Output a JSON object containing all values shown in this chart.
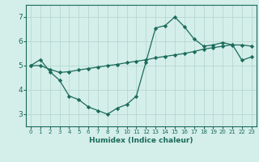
{
  "xlabel": "Humidex (Indice chaleur)",
  "bg_color": "#d4eeea",
  "grid_color": "#b8d8d2",
  "line_color": "#1a6b5a",
  "line1_x": [
    0,
    1,
    2,
    3,
    4,
    5,
    6,
    7,
    8,
    9,
    10,
    11,
    12,
    13,
    14,
    15,
    16,
    17,
    18,
    19,
    20,
    21,
    22,
    23
  ],
  "line1_y": [
    5.0,
    5.25,
    4.75,
    4.4,
    3.75,
    3.6,
    3.3,
    3.15,
    3.0,
    3.25,
    3.4,
    3.75,
    5.15,
    6.55,
    6.65,
    7.0,
    6.6,
    6.1,
    5.8,
    5.85,
    5.95,
    5.85,
    5.85,
    5.8
  ],
  "line2_x": [
    0,
    1,
    2,
    3,
    4,
    5,
    6,
    7,
    8,
    9,
    10,
    11,
    12,
    13,
    14,
    15,
    16,
    17,
    18,
    19,
    20,
    21,
    22,
    23
  ],
  "line2_y": [
    5.0,
    5.0,
    4.85,
    4.72,
    4.75,
    4.82,
    4.88,
    4.94,
    5.0,
    5.05,
    5.12,
    5.18,
    5.24,
    5.32,
    5.38,
    5.44,
    5.5,
    5.58,
    5.68,
    5.74,
    5.8,
    5.86,
    5.22,
    5.36
  ],
  "ylim": [
    2.5,
    7.5
  ],
  "xlim": [
    -0.5,
    23.5
  ],
  "yticks": [
    3,
    4,
    5,
    6,
    7
  ],
  "xticks": [
    0,
    1,
    2,
    3,
    4,
    5,
    6,
    7,
    8,
    9,
    10,
    11,
    12,
    13,
    14,
    15,
    16,
    17,
    18,
    19,
    20,
    21,
    22,
    23
  ]
}
